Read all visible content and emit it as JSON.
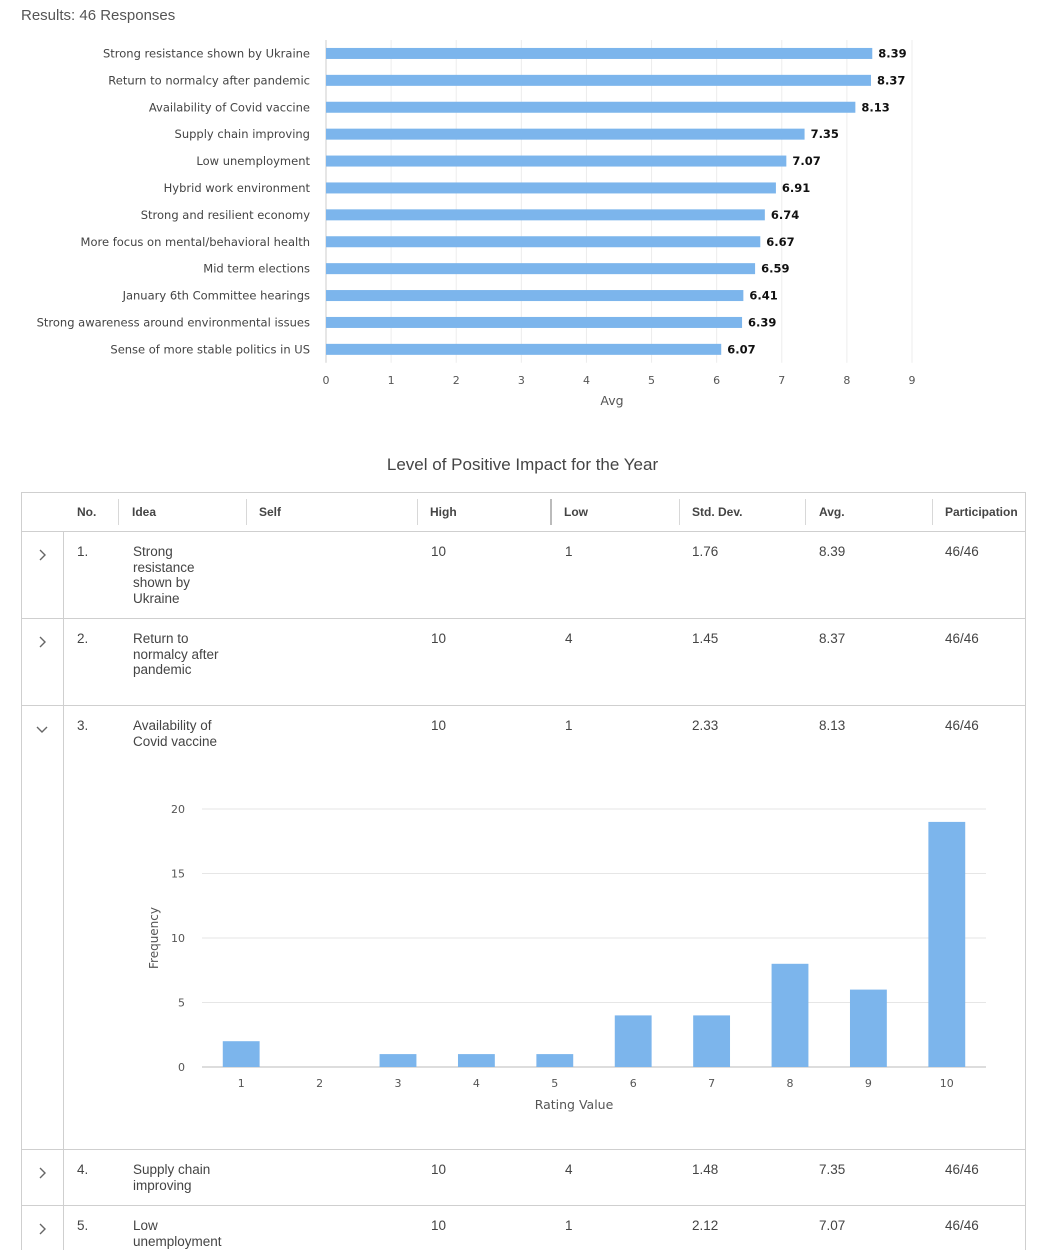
{
  "header": {
    "results_text": "Results: 46 Responses"
  },
  "avg_chart": {
    "type": "bar",
    "orientation": "horizontal",
    "categories": [
      "Strong resistance shown by Ukraine",
      "Return to normalcy after pandemic",
      "Availability of Covid vaccine",
      "Supply chain improving",
      "Low unemployment",
      "Hybrid work environment",
      "Strong and resilient economy",
      "More focus on mental/behavioral health",
      "Mid term elections",
      "January 6th Committee hearings",
      "Strong awareness around environmental issues",
      "Sense of more stable politics in US"
    ],
    "values": [
      8.39,
      8.37,
      8.13,
      7.35,
      7.07,
      6.91,
      6.74,
      6.67,
      6.59,
      6.41,
      6.39,
      6.07
    ],
    "value_labels": [
      "8.39",
      "8.37",
      "8.13",
      "7.35",
      "7.07",
      "6.91",
      "6.74",
      "6.67",
      "6.59",
      "6.41",
      "6.39",
      "6.07"
    ],
    "xlim": [
      0,
      9
    ],
    "ticks": [
      "0",
      "1",
      "2",
      "3",
      "4",
      "5",
      "6",
      "7",
      "8",
      "9"
    ],
    "xlabel": "Avg",
    "bar_color": "#7cb5ec"
  },
  "chart_data": [
    {
      "type": "bar",
      "orientation": "horizontal",
      "title": "",
      "categories": [
        "Strong resistance shown by Ukraine",
        "Return to normalcy after pandemic",
        "Availability of Covid vaccine",
        "Supply chain improving",
        "Low unemployment",
        "Hybrid work environment",
        "Strong and resilient economy",
        "More focus on mental/behavioral health",
        "Mid term elections",
        "January 6th Committee hearings",
        "Strong awareness around environmental issues",
        "Sense of more stable politics in US"
      ],
      "values": [
        8.39,
        8.37,
        8.13,
        7.35,
        7.07,
        6.91,
        6.74,
        6.67,
        6.59,
        6.41,
        6.39,
        6.07
      ],
      "xlabel": "Avg",
      "xlim": [
        0,
        9
      ]
    },
    {
      "type": "bar",
      "title": "Availability of Covid vaccine",
      "categories": [
        "1",
        "2",
        "3",
        "4",
        "5",
        "6",
        "7",
        "8",
        "9",
        "10"
      ],
      "values": [
        2,
        0,
        1,
        1,
        1,
        4,
        4,
        8,
        6,
        19
      ],
      "xlabel": "Rating Value",
      "ylabel": "Frequency",
      "ylim": [
        0,
        20
      ]
    }
  ],
  "table": {
    "title": "Level of Positive Impact for the Year",
    "headers": {
      "no": "No.",
      "idea": "Idea",
      "self": "Self",
      "high": "High",
      "low": "Low",
      "std": "Std. Dev.",
      "avg": "Avg.",
      "participation": "Participation"
    },
    "rows": [
      {
        "no": "1.",
        "idea": "Strong resistance shown by Ukraine",
        "self": "",
        "high": "10",
        "low": "1",
        "std": "1.76",
        "avg": "8.39",
        "participation": "46/46"
      },
      {
        "no": "2.",
        "idea": "Return to normalcy after pandemic",
        "self": "",
        "high": "10",
        "low": "4",
        "std": "1.45",
        "avg": "8.37",
        "participation": "46/46"
      },
      {
        "no": "3.",
        "idea": "Availability of Covid vaccine",
        "self": "",
        "high": "10",
        "low": "1",
        "std": "2.33",
        "avg": "8.13",
        "participation": "46/46"
      },
      {
        "no": "4.",
        "idea": "Supply chain improving",
        "self": "",
        "high": "10",
        "low": "4",
        "std": "1.48",
        "avg": "7.35",
        "participation": "46/46"
      },
      {
        "no": "5.",
        "idea": "Low unemployment",
        "self": "",
        "high": "10",
        "low": "1",
        "std": "2.12",
        "avg": "7.07",
        "participation": "46/46"
      }
    ]
  },
  "freq_chart": {
    "categories": [
      "1",
      "2",
      "3",
      "4",
      "5",
      "6",
      "7",
      "8",
      "9",
      "10"
    ],
    "values": [
      2,
      0,
      1,
      1,
      1,
      4,
      4,
      8,
      6,
      19
    ],
    "ylim": [
      0,
      20
    ],
    "yticks": [
      "0",
      "5",
      "10",
      "15",
      "20"
    ],
    "xlabel": "Rating Value",
    "ylabel": "Frequency",
    "bar_color": "#7cb5ec"
  },
  "icons": {
    "collapsed": "chevron-right-icon",
    "expanded": "chevron-down-icon"
  }
}
